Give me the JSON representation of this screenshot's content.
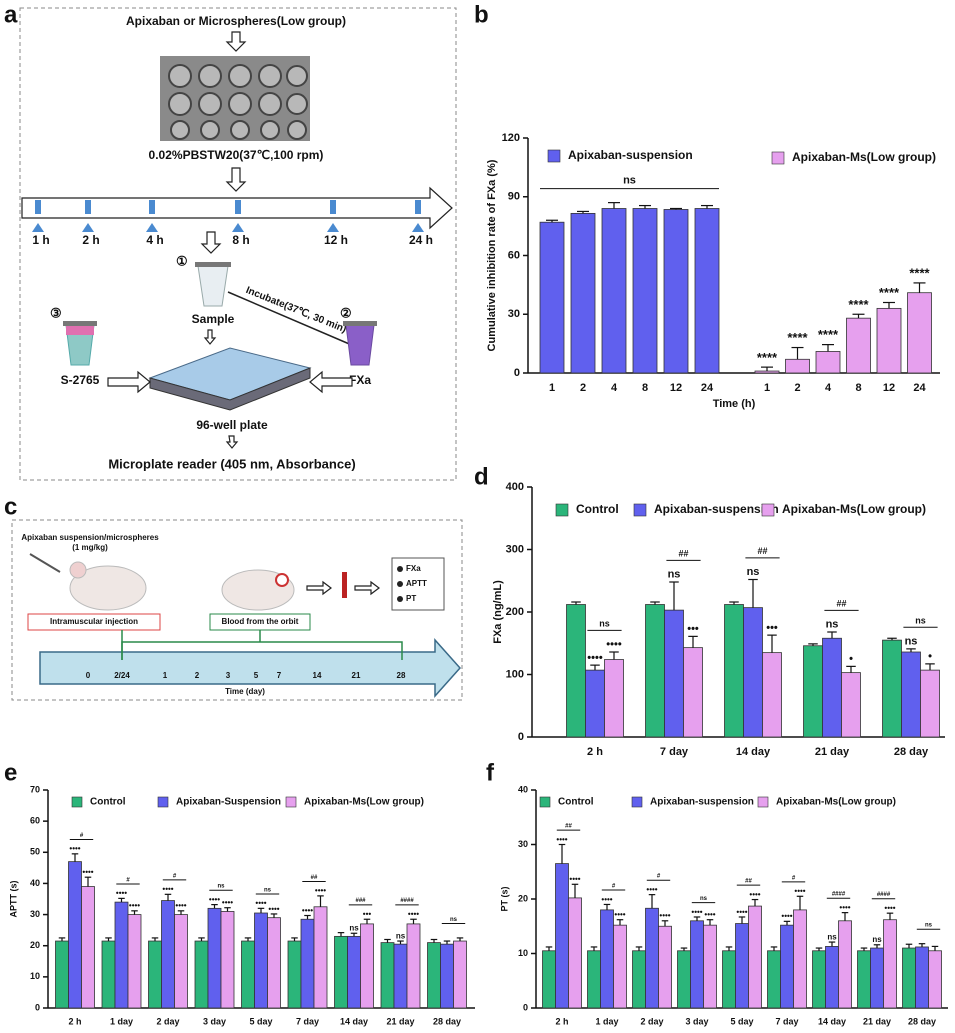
{
  "panel_labels": [
    "a",
    "b",
    "c",
    "d",
    "e",
    "f"
  ],
  "diagram_a": {
    "top": "Apixaban or Microspheres(Low group)",
    "medium": "0.02%PBSTW20(37℃,100 rpm)",
    "times": [
      "1 h",
      "2 h",
      "4 h",
      "8 h",
      "12 h",
      "24 h"
    ],
    "step1": "①",
    "sample": "Sample",
    "incubate": "Incubate(37℃, 30 min)",
    "step2": "②",
    "step3": "③",
    "substrate": "S-2765",
    "enzyme": "FXa",
    "plate": "96-well plate",
    "reader": "Microplate reader (405 nm, Absorbance)"
  },
  "diagram_c": {
    "dose_1": "Apixaban suspension/microspheres",
    "dose_2": "(1 mg/kg)",
    "injection": "Intramuscular injection",
    "blood": "Blood from the orbit",
    "assays": [
      "FXa",
      "APTT",
      "PT"
    ],
    "days": [
      "0",
      "2/24",
      "1",
      "2",
      "3",
      "5",
      "7",
      "14",
      "21",
      "28"
    ],
    "axis": "Time (day)"
  },
  "chart_data": [
    {
      "type": "bar",
      "x_label": "Time (h)",
      "y_label": "Cumulative inhibition rate of FXa (%)",
      "categories": [
        "1",
        "2",
        "4",
        "8",
        "12",
        "24",
        "1",
        "2",
        "4",
        "8",
        "12",
        "24"
      ],
      "ylim": [
        0,
        120
      ],
      "yticks": [
        0,
        30,
        60,
        90,
        120
      ],
      "grid": false,
      "group_label": "ns",
      "series": [
        {
          "name": "Apixaban-suspension",
          "color": "#6060ee",
          "values": [
            77,
            81.5,
            84,
            84,
            83.5,
            84,
            null,
            null,
            null,
            null,
            null,
            null
          ],
          "errors": [
            1,
            1,
            3,
            1.5,
            0.5,
            1.5,
            null,
            null,
            null,
            null,
            null,
            null
          ],
          "marks_above": [
            null,
            null,
            null,
            null,
            null,
            null,
            null,
            null,
            null,
            null,
            null,
            null
          ]
        },
        {
          "name": "Apixaban-Ms(Low group)",
          "color": "#e6a0ee",
          "values": [
            null,
            null,
            null,
            null,
            null,
            null,
            1,
            7,
            11,
            28,
            33,
            41
          ],
          "errors": [
            null,
            null,
            null,
            null,
            null,
            null,
            2,
            6,
            3.5,
            2,
            3,
            5
          ],
          "marks_above": [
            null,
            null,
            null,
            null,
            null,
            null,
            "****",
            "****",
            "****",
            "****",
            "****",
            "****"
          ]
        }
      ]
    },
    {
      "type": "bar",
      "y_label": "FXa (ng/mL)",
      "categories": [
        "2 h",
        "7 day",
        "14 day",
        "21 day",
        "28 day"
      ],
      "ylim": [
        0,
        400
      ],
      "yticks": [
        0,
        100,
        200,
        300,
        400
      ],
      "grid": false,
      "brackets": [
        "ns",
        "##",
        "##",
        "##",
        "ns"
      ],
      "series": [
        {
          "name": "Control",
          "color": "#2bb57a",
          "values": [
            212,
            212,
            212,
            146,
            155
          ],
          "errors": [
            4,
            4,
            4,
            3,
            3
          ],
          "marks_above": [
            null,
            null,
            null,
            null,
            null
          ]
        },
        {
          "name": "Apixaban-suspension",
          "color": "#6060ee",
          "values": [
            107,
            203,
            207,
            158,
            136
          ],
          "errors": [
            8,
            45,
            45,
            10,
            5
          ],
          "marks_above": [
            "••••",
            "ns",
            "ns",
            "ns",
            "ns"
          ]
        },
        {
          "name": "Apixaban-Ms(Low group)",
          "color": "#e6a0ee",
          "values": [
            124,
            143,
            135,
            103,
            107
          ],
          "errors": [
            12,
            18,
            28,
            10,
            10
          ],
          "marks_above": [
            "••••",
            "•••",
            "•••",
            "•",
            "•"
          ]
        }
      ]
    },
    {
      "type": "bar",
      "y_label": "APTT (s)",
      "categories": [
        "2 h",
        "1 day",
        "2 day",
        "3 day",
        "5 day",
        "7 day",
        "14 day",
        "21 day",
        "28 day"
      ],
      "ylim": [
        0,
        70
      ],
      "yticks": [
        0,
        10,
        20,
        30,
        40,
        50,
        60,
        70
      ],
      "grid": false,
      "brackets": [
        "#",
        "#",
        "#",
        "ns",
        "ns",
        "##",
        "###",
        "####",
        "ns"
      ],
      "series": [
        {
          "name": "Control",
          "color": "#2bb57a",
          "values": [
            21.5,
            21.5,
            21.5,
            21.5,
            21.5,
            21.5,
            23,
            21,
            21
          ],
          "errors": [
            1,
            1,
            1,
            1,
            1,
            1,
            1.2,
            1,
            1
          ],
          "marks_above": [
            null,
            null,
            null,
            null,
            null,
            null,
            null,
            null,
            null
          ]
        },
        {
          "name": "Apixaban-Suspension",
          "color": "#6060ee",
          "values": [
            47,
            34,
            34.5,
            32,
            30.5,
            28.5,
            23,
            20.5,
            20.5
          ],
          "errors": [
            2.5,
            1.2,
            2,
            1.2,
            1.5,
            1.2,
            1,
            1,
            1
          ],
          "marks_above": [
            "••••",
            "••••",
            "••••",
            "••••",
            "••••",
            "••••",
            "ns",
            "ns",
            null
          ]
        },
        {
          "name": "Apixaban-Ms(Low group)",
          "color": "#e6a0ee",
          "values": [
            39,
            30,
            30,
            31,
            29,
            32.5,
            27,
            27,
            21.5
          ],
          "errors": [
            3,
            1.2,
            1.2,
            1.2,
            1.2,
            3.5,
            1.5,
            1.5,
            1
          ],
          "marks_above": [
            "••••",
            "••••",
            "••••",
            "••••",
            "••••",
            "••••",
            "•••",
            "••••",
            null
          ]
        }
      ]
    },
    {
      "type": "bar",
      "y_label": "PT (s)",
      "categories": [
        "2 h",
        "1 day",
        "2 day",
        "3 day",
        "5 day",
        "7 day",
        "14 day",
        "21 day",
        "28 day"
      ],
      "ylim": [
        0,
        40
      ],
      "yticks": [
        0,
        10,
        20,
        30,
        40
      ],
      "grid": false,
      "brackets": [
        "##",
        "#",
        "#",
        "ns",
        "##",
        "#",
        "####",
        "####",
        "ns"
      ],
      "series": [
        {
          "name": "Control",
          "color": "#2bb57a",
          "values": [
            10.5,
            10.5,
            10.5,
            10.5,
            10.5,
            10.5,
            10.5,
            10.5,
            11
          ],
          "errors": [
            0.7,
            0.7,
            0.7,
            0.5,
            0.7,
            0.7,
            0.5,
            0.5,
            0.7
          ],
          "marks_above": [
            null,
            null,
            null,
            null,
            null,
            null,
            null,
            null,
            null
          ]
        },
        {
          "name": "Apixaban-suspension",
          "color": "#6060ee",
          "values": [
            26.5,
            18,
            18.3,
            16,
            15.5,
            15.2,
            11.3,
            11,
            11.2
          ],
          "errors": [
            3.5,
            1,
            2.5,
            0.7,
            1.2,
            0.7,
            0.8,
            0.6,
            0.6
          ],
          "marks_above": [
            "••••",
            "••••",
            "••••",
            "••••",
            "••••",
            "••••",
            "ns",
            "ns",
            null
          ]
        },
        {
          "name": "Apixaban-Ms(Low group)",
          "color": "#e6a0ee",
          "values": [
            20.2,
            15.2,
            15,
            15.2,
            18.7,
            18,
            16,
            16.2,
            10.5
          ],
          "errors": [
            2.5,
            1,
            1,
            1,
            1.2,
            2.5,
            1.5,
            1.2,
            0.8
          ],
          "marks_above": [
            "••••",
            "••••",
            "••••",
            "••••",
            "••••",
            "••••",
            "••••",
            "••••",
            null
          ]
        }
      ]
    }
  ]
}
